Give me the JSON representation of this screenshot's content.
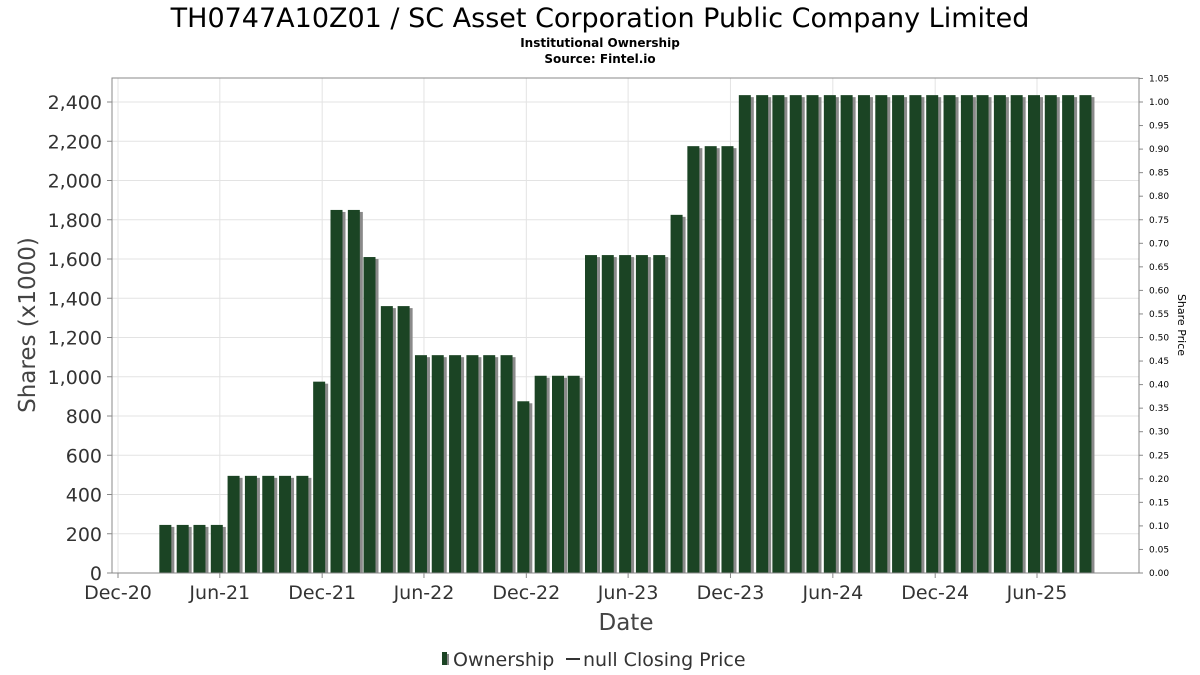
{
  "header": {
    "title": "TH0747A10Z01 / SC Asset Corporation Public Company Limited",
    "subtitle": "Institutional Ownership",
    "source": "Source: Fintel.io"
  },
  "colors": {
    "bar": "#1b4424",
    "bar_shadow": "#8a8a8a",
    "grid": "#e3e3e3",
    "axis": "#888888"
  },
  "chart_data": {
    "type": "bar",
    "title": "TH0747A10Z01 / SC Asset Corporation Public Company Limited",
    "subtitle": "Institutional Ownership",
    "xlabel": "Date",
    "ylabel": "Shares (x1000)",
    "y2label": "Share Price",
    "xlim": [
      "2020-12-01",
      "2025-10-31"
    ],
    "ylim": [
      0,
      2520
    ],
    "y2lim": [
      0,
      1.05
    ],
    "y_ticks": [
      "0",
      "200",
      "400",
      "600",
      "800",
      "1,000",
      "1,200",
      "1,400",
      "1,600",
      "1,800",
      "2,000",
      "2,200",
      "2,400"
    ],
    "y2_ticks": [
      "0.00",
      "0.05",
      "0.10",
      "0.15",
      "0.20",
      "0.25",
      "0.30",
      "0.35",
      "0.40",
      "0.45",
      "0.50",
      "0.55",
      "0.60",
      "0.65",
      "0.70",
      "0.75",
      "0.80",
      "0.85",
      "0.90",
      "0.95",
      "1.00",
      "1.05"
    ],
    "x_ticks": [
      {
        "label": "Dec-20",
        "date": "2020-12-01"
      },
      {
        "label": "Jun-21",
        "date": "2021-06-01"
      },
      {
        "label": "Dec-21",
        "date": "2021-12-01"
      },
      {
        "label": "Jun-22",
        "date": "2022-06-01"
      },
      {
        "label": "Dec-22",
        "date": "2022-12-01"
      },
      {
        "label": "Jun-23",
        "date": "2023-06-01"
      },
      {
        "label": "Dec-23",
        "date": "2023-12-01"
      },
      {
        "label": "Jun-24",
        "date": "2024-06-01"
      },
      {
        "label": "Dec-24",
        "date": "2024-12-01"
      },
      {
        "label": "Jun-25",
        "date": "2025-06-01"
      }
    ],
    "grid": true,
    "legend_position": "bottom",
    "series": [
      {
        "name": "Ownership",
        "x": [
          "2021-03-01",
          "2021-04-01",
          "2021-05-01",
          "2021-06-01",
          "2021-07-01",
          "2021-08-01",
          "2021-09-01",
          "2021-10-01",
          "2021-11-01",
          "2021-12-01",
          "2022-01-01",
          "2022-02-01",
          "2022-03-01",
          "2022-04-01",
          "2022-05-01",
          "2022-06-01",
          "2022-07-01",
          "2022-08-01",
          "2022-09-01",
          "2022-10-01",
          "2022-11-01",
          "2022-12-01",
          "2023-01-01",
          "2023-02-01",
          "2023-03-01",
          "2023-04-01",
          "2023-05-01",
          "2023-06-01",
          "2023-07-01",
          "2023-08-01",
          "2023-09-01",
          "2023-10-01",
          "2023-11-01",
          "2023-12-01",
          "2024-01-01",
          "2024-02-01",
          "2024-03-01",
          "2024-04-01",
          "2024-05-01",
          "2024-06-01",
          "2024-07-01",
          "2024-08-01",
          "2024-09-01",
          "2024-10-01",
          "2024-11-01",
          "2024-12-01",
          "2025-01-01",
          "2025-02-01",
          "2025-03-01",
          "2025-04-01",
          "2025-05-01",
          "2025-06-01",
          "2025-07-01",
          "2025-08-01",
          "2025-09-01"
        ],
        "values": [
          245,
          245,
          245,
          245,
          495,
          495,
          495,
          495,
          495,
          975,
          1850,
          1850,
          1610,
          1360,
          1360,
          1110,
          1110,
          1110,
          1110,
          1110,
          1110,
          875,
          1005,
          1005,
          1005,
          1620,
          1620,
          1620,
          1620,
          1620,
          1825,
          2175,
          2175,
          2175,
          2435,
          2435,
          2435,
          2435,
          2435,
          2435,
          2435,
          2435,
          2435,
          2435,
          2435,
          2435,
          2435,
          2435,
          2435,
          2435,
          2435,
          2435,
          2435,
          2435,
          2435
        ]
      }
    ]
  },
  "legend": {
    "ownership_label": "Ownership",
    "price_label": "null Closing Price"
  }
}
